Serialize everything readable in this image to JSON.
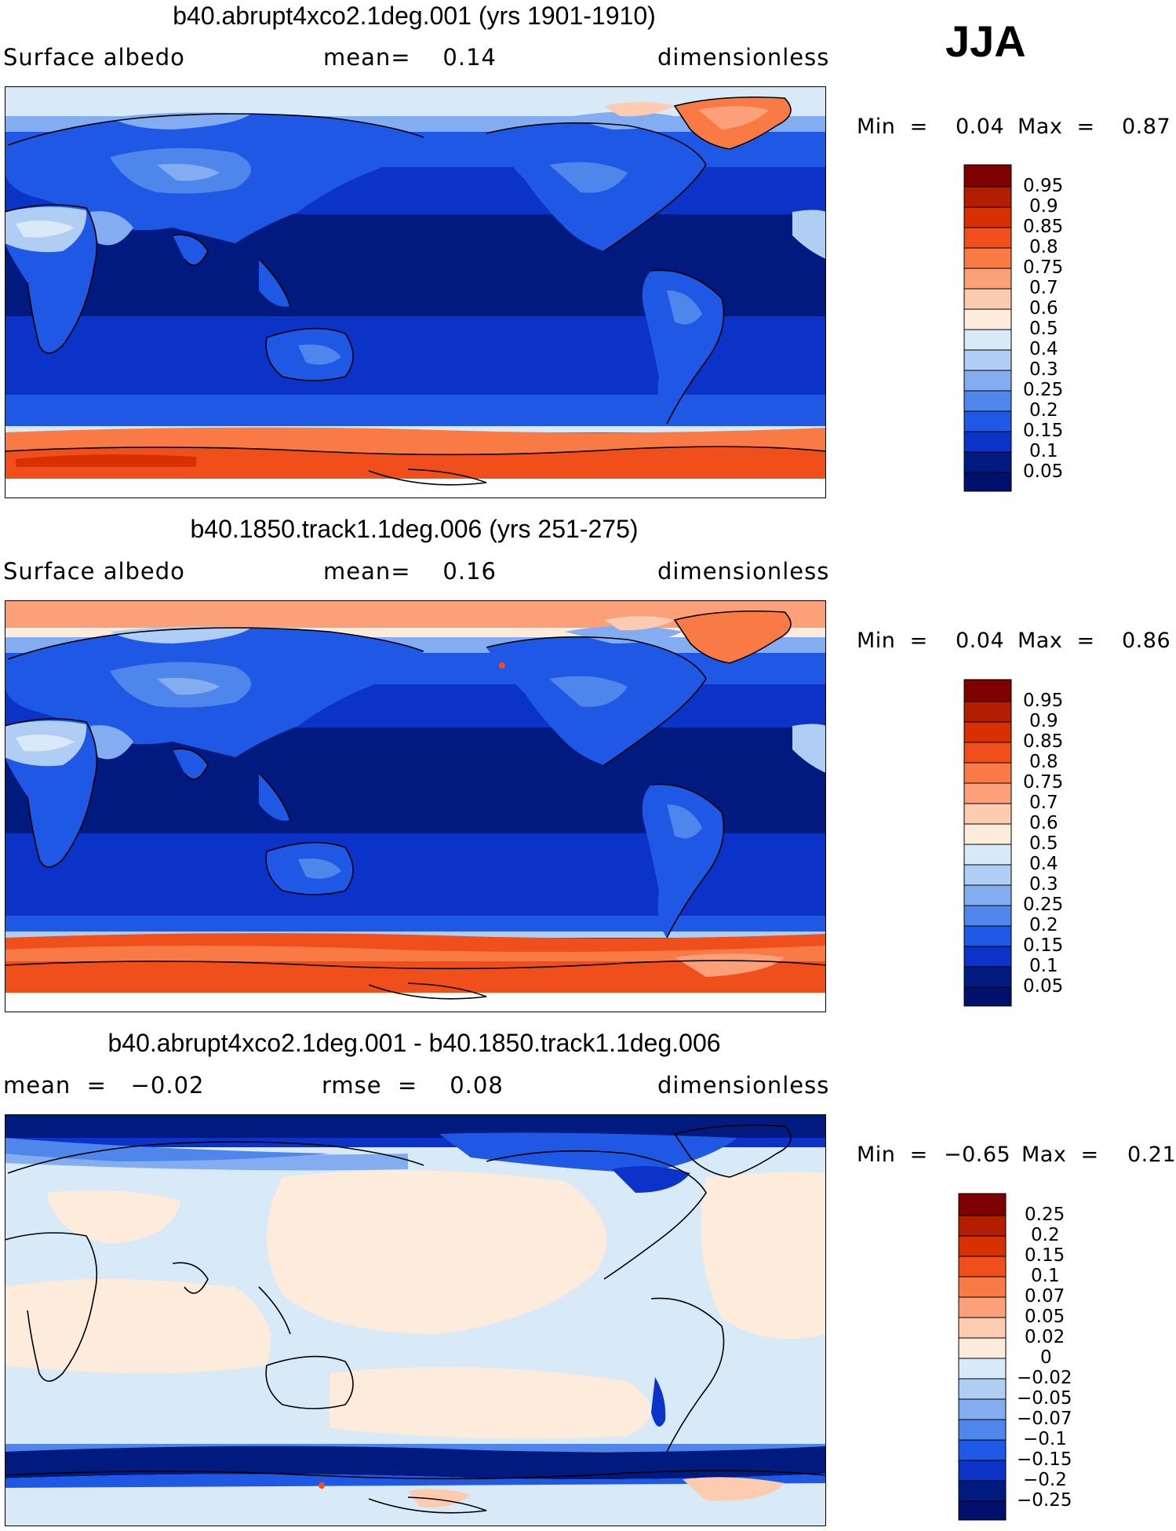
{
  "header": {
    "season": "JJA"
  },
  "panels": [
    {
      "title": "b40.abrupt4xco2.1deg.001 (yrs 1901-1910)",
      "left_label": "Surface albedo",
      "center_label": "mean=    0.14",
      "right_label": "dimensionless",
      "min_label": "Min  =",
      "min_value": "0.04",
      "max_label": "Max  =",
      "max_value": "0.87",
      "colorbar_labels": [
        "0.95",
        "0.9",
        "0.85",
        "0.8",
        "0.75",
        "0.7",
        "0.6",
        "0.5",
        "0.4",
        "0.3",
        "0.25",
        "0.2",
        "0.15",
        "0.1",
        "0.05"
      ]
    },
    {
      "title": "b40.1850.track1.1deg.006 (yrs 251-275)",
      "left_label": "Surface albedo",
      "center_label": "mean=    0.16",
      "right_label": "dimensionless",
      "min_label": "Min  =",
      "min_value": "0.04",
      "max_label": "Max  =",
      "max_value": "0.86",
      "colorbar_labels": [
        "0.95",
        "0.9",
        "0.85",
        "0.8",
        "0.75",
        "0.7",
        "0.6",
        "0.5",
        "0.4",
        "0.3",
        "0.25",
        "0.2",
        "0.15",
        "0.1",
        "0.05"
      ]
    },
    {
      "title": "b40.abrupt4xco2.1deg.001 - b40.1850.track1.1deg.006",
      "left_label": "mean  =   −0.02",
      "center_label": "rmse  =    0.08",
      "right_label": "dimensionless",
      "min_label": "Min  =",
      "min_value": "−0.65",
      "max_label": "Max  =",
      "max_value": "0.21",
      "colorbar_labels": [
        "0.25",
        "0.2",
        "0.15",
        "0.1",
        "0.07",
        "0.05",
        "0.02",
        "0",
        "−0.02",
        "−0.05",
        "−0.07",
        "−0.1",
        "−0.15",
        "−0.2",
        "−0.25"
      ]
    }
  ],
  "colors": {
    "abs_scale": [
      "#7f0000",
      "#b31e00",
      "#d83000",
      "#f04e1a",
      "#fa7a45",
      "#fca07a",
      "#fdcbb0",
      "#fdebdc",
      "#d8e9f8",
      "#b0cdf3",
      "#84acf0",
      "#4f86ec",
      "#2058e6",
      "#0b33c8",
      "#001a80",
      "#00106c"
    ],
    "diff_scale": [
      "#7f0000",
      "#b31e00",
      "#d83000",
      "#f04e1a",
      "#fa7a45",
      "#fca07a",
      "#fdcbb0",
      "#fdebdc",
      "#d8e9f8",
      "#b0cdf3",
      "#84acf0",
      "#4f86ec",
      "#2058e6",
      "#0b33c8",
      "#001a80",
      "#00106c"
    ]
  }
}
